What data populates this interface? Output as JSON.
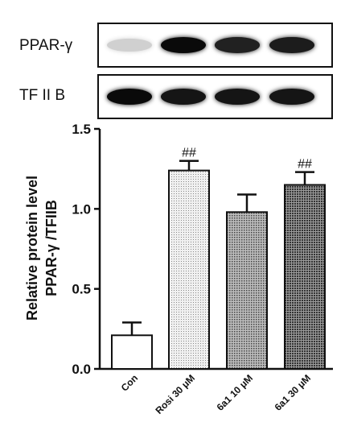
{
  "blots": [
    {
      "label": "PPAR-γ",
      "band_intensity": [
        0.12,
        1.0,
        0.9,
        0.92
      ]
    },
    {
      "label": "TF II B",
      "band_intensity": [
        1.0,
        0.95,
        0.95,
        0.95
      ]
    }
  ],
  "chart_data": {
    "type": "bar",
    "categories": [
      "Con",
      "Rosi 30 μM",
      "6a1 10 μM",
      "6a1 30 μM"
    ],
    "values": [
      0.21,
      1.24,
      0.98,
      1.15
    ],
    "errors": [
      0.08,
      0.06,
      0.11,
      0.08
    ],
    "annotations": [
      "",
      "##",
      "",
      "##"
    ],
    "ylabel_line1": "Relative protein level",
    "ylabel_line2": "PPAR-γ /TFIIB",
    "yticks": [
      "0.0",
      "0.5",
      "1.0",
      "1.5"
    ],
    "ylim": [
      0,
      1.5
    ],
    "bar_fills": [
      "#ffffff",
      "#d9d9d9",
      "#8a8a8a",
      "#6e6e6e"
    ],
    "grid": false,
    "legend": "none"
  }
}
